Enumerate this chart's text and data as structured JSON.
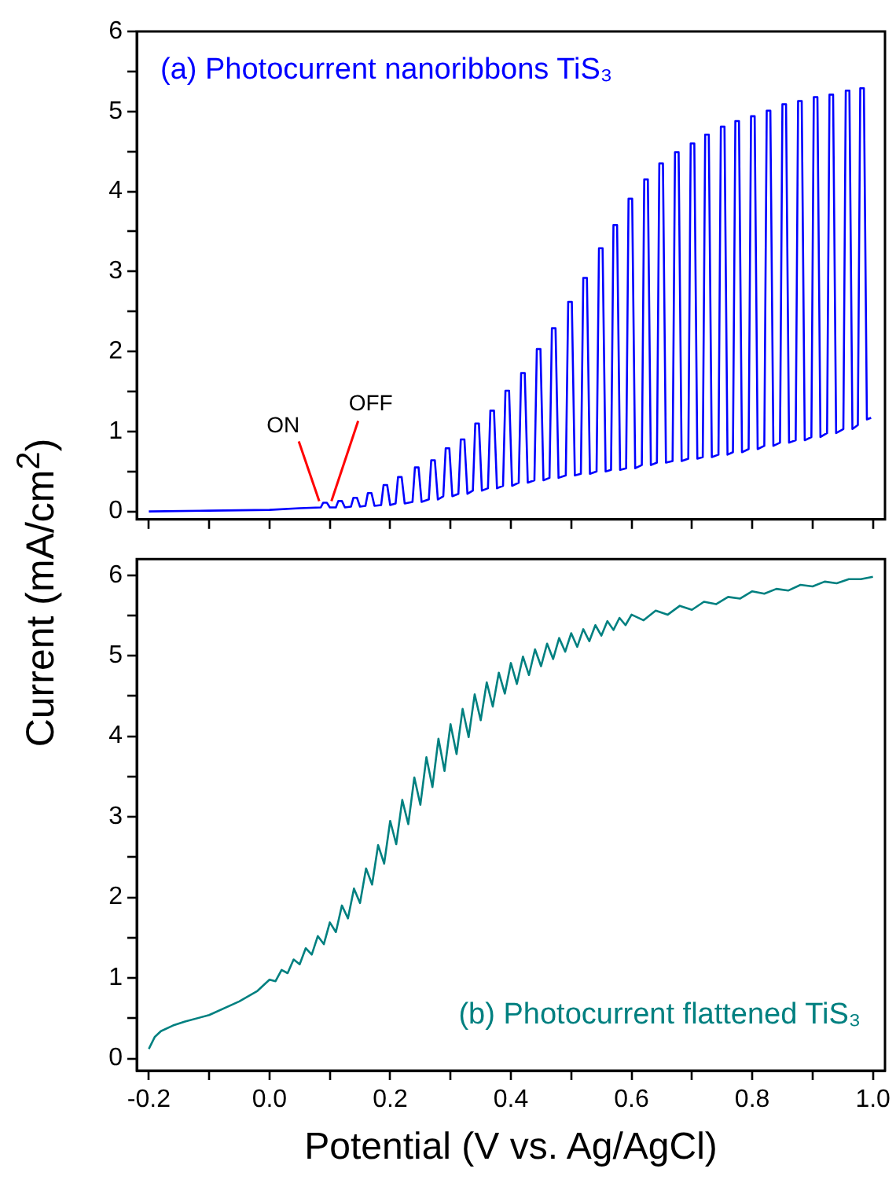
{
  "chart_data": [
    {
      "type": "line",
      "ylabel": "Current (mA/cm$^{2}$)",
      "xlim": [
        -0.22,
        1.02
      ],
      "ylim": [
        -0.1,
        6
      ],
      "xticks": [
        -0.2,
        -0.1,
        0,
        0.1,
        0.2,
        0.3,
        0.4,
        0.5,
        0.6,
        0.7,
        0.8,
        0.9,
        1
      ],
      "yticks": [
        0,
        {
          "value": 0.5,
          "label": null
        },
        1,
        {
          "value": 1.5,
          "label": null
        },
        2,
        {
          "value": 2.5,
          "label": null
        },
        3,
        {
          "value": 3.5,
          "label": null
        },
        4,
        {
          "value": 4.5,
          "label": null
        },
        5,
        {
          "value": 5.5,
          "label": null
        },
        6
      ],
      "tick_labels": "y",
      "grid": false,
      "legend": false,
      "annotations": [
        "(a) Photocurrent nanoribbons TiS₃",
        {
          "text": "ON",
          "x": 0.085,
          "y": 0.05
        },
        {
          "text": "OFF",
          "x": 0.1,
          "y": 0.05
        }
      ],
      "series": [
        {
          "color": "#0000ff",
          "x": [
            -0.2,
            -0.1,
            0,
            0.05,
            0.085,
            0.089,
            0.095,
            0.1,
            0.11,
            0.114,
            0.12,
            0.125,
            0.135,
            0.139,
            0.145,
            0.15,
            0.159,
            0.163,
            0.169,
            0.174,
            0.185,
            0.189,
            0.195,
            0.2,
            0.209,
            0.213,
            0.219,
            0.224,
            0.237,
            0.241,
            0.247,
            0.252,
            0.264,
            0.268,
            0.274,
            0.279,
            0.288,
            0.292,
            0.298,
            0.303,
            0.313,
            0.317,
            0.323,
            0.328,
            0.337,
            0.341,
            0.347,
            0.352,
            0.362,
            0.366,
            0.372,
            0.377,
            0.387,
            0.391,
            0.397,
            0.402,
            0.413,
            0.417,
            0.423,
            0.428,
            0.439,
            0.443,
            0.449,
            0.454,
            0.464,
            0.468,
            0.474,
            0.479,
            0.491,
            0.495,
            0.501,
            0.506,
            0.516,
            0.52,
            0.526,
            0.531,
            0.542,
            0.546,
            0.552,
            0.557,
            0.566,
            0.57,
            0.576,
            0.581,
            0.591,
            0.595,
            0.601,
            0.606,
            0.617,
            0.621,
            0.627,
            0.632,
            0.642,
            0.646,
            0.652,
            0.657,
            0.668,
            0.672,
            0.678,
            0.683,
            0.694,
            0.698,
            0.704,
            0.709,
            0.718,
            0.722,
            0.728,
            0.733,
            0.744,
            0.748,
            0.754,
            0.759,
            0.768,
            0.772,
            0.778,
            0.783,
            0.794,
            0.798,
            0.804,
            0.809,
            0.82,
            0.824,
            0.83,
            0.835,
            0.846,
            0.85,
            0.856,
            0.861,
            0.872,
            0.876,
            0.882,
            0.887,
            0.898,
            0.902,
            0.908,
            0.913,
            0.924,
            0.928,
            0.934,
            0.939,
            0.951,
            0.955,
            0.961,
            0.966,
            0.975,
            0.979,
            0.985,
            0.99,
            0.997
          ],
          "values": [
            0,
            0.01,
            0.02,
            0.04,
            0.05,
            0.11,
            0.11,
            0.05,
            0.05,
            0.13,
            0.13,
            0.05,
            0.06,
            0.17,
            0.17,
            0.06,
            0.07,
            0.23,
            0.23,
            0.07,
            0.08,
            0.33,
            0.33,
            0.08,
            0.1,
            0.43,
            0.43,
            0.1,
            0.12,
            0.55,
            0.55,
            0.12,
            0.15,
            0.64,
            0.64,
            0.15,
            0.19,
            0.79,
            0.79,
            0.19,
            0.22,
            0.9,
            0.9,
            0.22,
            0.26,
            1.1,
            1.1,
            0.26,
            0.29,
            1.26,
            1.26,
            0.29,
            0.32,
            1.51,
            1.51,
            0.32,
            0.36,
            1.73,
            1.73,
            0.36,
            0.39,
            2.03,
            2.03,
            0.39,
            0.42,
            2.29,
            2.29,
            0.42,
            0.45,
            2.62,
            2.62,
            0.45,
            0.47,
            2.92,
            2.92,
            0.47,
            0.5,
            3.29,
            3.29,
            0.5,
            0.52,
            3.58,
            3.58,
            0.52,
            0.54,
            3.91,
            3.91,
            0.54,
            0.58,
            4.15,
            4.15,
            0.58,
            0.61,
            4.35,
            4.35,
            0.61,
            0.63,
            4.49,
            4.49,
            0.63,
            0.66,
            4.6,
            4.6,
            0.66,
            0.68,
            4.71,
            4.71,
            0.68,
            0.71,
            4.81,
            4.81,
            0.71,
            0.74,
            4.88,
            4.88,
            0.74,
            0.78,
            4.94,
            4.94,
            0.78,
            0.82,
            5.01,
            5.01,
            0.82,
            0.86,
            5.09,
            5.09,
            0.86,
            0.89,
            5.13,
            5.13,
            0.89,
            0.93,
            5.18,
            5.18,
            0.93,
            0.98,
            5.21,
            5.21,
            0.98,
            1.03,
            5.26,
            5.26,
            1.03,
            1.08,
            5.29,
            5.29,
            1.15,
            1.17
          ]
        }
      ]
    },
    {
      "type": "line",
      "xlabel": "Potential (V vs. Ag/AgCl)",
      "xlim": [
        -0.22,
        1.02
      ],
      "ylim": [
        -0.15,
        6.2
      ],
      "xticks": [
        -0.2,
        {
          "value": -0.1,
          "label": null
        },
        {
          "value": 0,
          "label": "0.0"
        },
        {
          "value": 0.1,
          "label": null
        },
        0.2,
        {
          "value": 0.3,
          "label": null
        },
        0.4,
        {
          "value": 0.5,
          "label": null
        },
        0.6,
        {
          "value": 0.7,
          "label": null
        },
        0.8,
        {
          "value": 0.9,
          "label": null
        },
        {
          "value": 1,
          "label": "1.0"
        }
      ],
      "yticks": [
        0,
        {
          "value": 0.5,
          "label": null
        },
        1,
        {
          "value": 1.5,
          "label": null
        },
        2,
        {
          "value": 2.5,
          "label": null
        },
        3,
        {
          "value": 3.5,
          "label": null
        },
        4,
        {
          "value": 4.5,
          "label": null
        },
        5,
        {
          "value": 5.5,
          "label": null
        },
        6
      ],
      "grid": false,
      "legend": false,
      "annotations": [
        "(b) Photocurrent flattened TiS₃"
      ],
      "series": [
        {
          "color": "#008080",
          "x": [
            -0.2,
            -0.19,
            -0.18,
            -0.16,
            -0.14,
            -0.1,
            -0.05,
            -0.02,
            0,
            0.01,
            0.02,
            0.03,
            0.04,
            0.05,
            0.06,
            0.07,
            0.08,
            0.09,
            0.1,
            0.11,
            0.12,
            0.13,
            0.14,
            0.15,
            0.16,
            0.17,
            0.18,
            0.19,
            0.2,
            0.21,
            0.22,
            0.23,
            0.24,
            0.25,
            0.26,
            0.27,
            0.28,
            0.29,
            0.3,
            0.31,
            0.32,
            0.33,
            0.34,
            0.35,
            0.36,
            0.37,
            0.38,
            0.39,
            0.4,
            0.41,
            0.42,
            0.43,
            0.44,
            0.45,
            0.46,
            0.47,
            0.48,
            0.49,
            0.5,
            0.51,
            0.52,
            0.53,
            0.54,
            0.55,
            0.56,
            0.57,
            0.58,
            0.59,
            0.6,
            0.62,
            0.64,
            0.66,
            0.68,
            0.7,
            0.72,
            0.74,
            0.76,
            0.78,
            0.8,
            0.82,
            0.84,
            0.86,
            0.88,
            0.9,
            0.92,
            0.94,
            0.96,
            0.98,
            1
          ],
          "values": [
            0.12,
            0.27,
            0.34,
            0.41,
            0.46,
            0.54,
            0.71,
            0.84,
            0.98,
            0.96,
            1.1,
            1.06,
            1.23,
            1.17,
            1.37,
            1.29,
            1.52,
            1.42,
            1.69,
            1.57,
            1.9,
            1.74,
            2.11,
            1.93,
            2.36,
            2.16,
            2.65,
            2.42,
            2.95,
            2.66,
            3.21,
            2.91,
            3.49,
            3.15,
            3.74,
            3.37,
            3.97,
            3.57,
            4.15,
            3.78,
            4.34,
            3.99,
            4.52,
            4.2,
            4.67,
            4.37,
            4.79,
            4.53,
            4.91,
            4.65,
            4.99,
            4.76,
            5.08,
            4.87,
            5.15,
            4.96,
            5.22,
            5.05,
            5.28,
            5.11,
            5.33,
            5.18,
            5.38,
            5.25,
            5.43,
            5.32,
            5.47,
            5.38,
            5.51,
            5.44,
            5.56,
            5.51,
            5.62,
            5.57,
            5.67,
            5.64,
            5.73,
            5.71,
            5.8,
            5.77,
            5.83,
            5.81,
            5.88,
            5.86,
            5.92,
            5.9,
            5.95,
            5.95,
            5.98
          ]
        }
      ]
    }
  ]
}
